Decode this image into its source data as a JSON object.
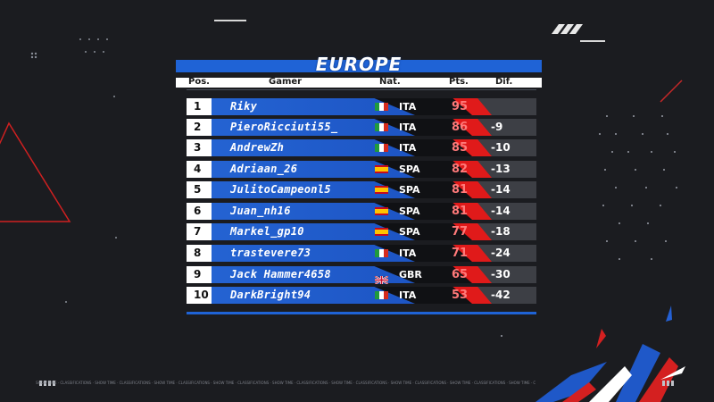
{
  "title": "EUROPE",
  "headers": {
    "pos": "Pos.",
    "gamer": "Gamer",
    "nat": "Nat.",
    "pts": "Pts.",
    "dif": "Dif."
  },
  "rows": [
    {
      "pos": "1",
      "gamer": "Riky",
      "flag": "it",
      "nat": "ITA",
      "pts": "95",
      "dif": ""
    },
    {
      "pos": "2",
      "gamer": "PieroRicciuti55_",
      "flag": "it",
      "nat": "ITA",
      "pts": "86",
      "dif": "-9"
    },
    {
      "pos": "3",
      "gamer": "AndrewZh",
      "flag": "it",
      "nat": "ITA",
      "pts": "85",
      "dif": "-10"
    },
    {
      "pos": "4",
      "gamer": "Adriaan_26",
      "flag": "es",
      "nat": "SPA",
      "pts": "82",
      "dif": "-13"
    },
    {
      "pos": "5",
      "gamer": "JulitoCampeonl5",
      "flag": "es",
      "nat": "SPA",
      "pts": "81",
      "dif": "-14"
    },
    {
      "pos": "6",
      "gamer": "Juan_nh16",
      "flag": "es",
      "nat": "SPA",
      "pts": "81",
      "dif": "-14"
    },
    {
      "pos": "7",
      "gamer": "Markel_gp10",
      "flag": "es",
      "nat": "SPA",
      "pts": "77",
      "dif": "-18"
    },
    {
      "pos": "8",
      "gamer": "trastevere73",
      "flag": "it",
      "nat": "ITA",
      "pts": "71",
      "dif": "-24"
    },
    {
      "pos": "9",
      "gamer": "Jack Hammer4658",
      "flag": "gb",
      "nat": "GBR",
      "pts": "65",
      "dif": "-30"
    },
    {
      "pos": "10",
      "gamer": "DarkBright94",
      "flag": "it",
      "nat": "ITA",
      "pts": "53",
      "dif": "-42"
    }
  ],
  "ticker": "SHOW TIME · CLASSIFICATIONS · SHOW TIME · CLASSIFICATIONS · SHOW TIME · CLASSIFICATIONS · SHOW TIME · CLASSIFICATIONS · SHOW TIME · CLASSIFICATIONS · SHOW TIME · CLASSIFICATIONS · SHOW TIME · CLASSIFICATIONS · SHOW TIME · CLASSIFICATIONS · SHOW TIME · CLASSIFICATIONS · SHOW TIME · CLASSIFICATIONS",
  "colors": {
    "accent_blue": "#1f63d6",
    "accent_red": "#e01a1a",
    "background": "#1b1c20",
    "flag_it": [
      "#1f9a3c",
      "#ffffff",
      "#d52b1e"
    ],
    "flag_es": [
      "#c60b1e",
      "#ffc400",
      "#c60b1e"
    ]
  }
}
